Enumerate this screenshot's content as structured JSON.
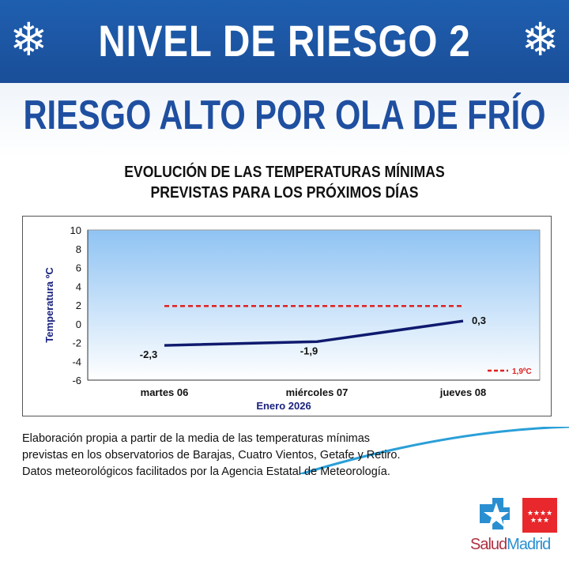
{
  "header": {
    "title": "NIVEL DE RIESGO 2",
    "icon": "snowflake-icon"
  },
  "subtitle": "RIESGO ALTO POR OLA DE FRÍO",
  "chart_data": {
    "type": "line",
    "title_lines": [
      "EVOLUCIÓN DE LAS TEMPERATURAS MÍNIMAS",
      "PREVISTAS PARA LOS PRÓXIMOS DÍAS"
    ],
    "categories": [
      "martes 06",
      "miércoles 07",
      "jueves 08"
    ],
    "xlabel": "Enero 2026",
    "ylabel": "Temperatura ºC",
    "ylim": [
      -6,
      10
    ],
    "yticks": [
      10,
      8,
      6,
      4,
      2,
      0,
      -2,
      -4,
      -6
    ],
    "series": [
      {
        "values": [
          -2.3,
          -1.9,
          0.3
        ],
        "labels": [
          "-2,3",
          "-1,9",
          "0,3"
        ],
        "color": "#0f1a6e"
      }
    ],
    "threshold": {
      "value": 1.9,
      "name": "1,9ºC",
      "color": "#e02020",
      "style": "dashed"
    },
    "legend": "bottom-right",
    "background": "gradient light blue"
  },
  "note": [
    "Elaboración propia a partir de la media de las temperaturas mínimas",
    "previstas en los observatorios de Barajas, Cuatro Vientos, Getafe y Retiro.",
    "Datos meteorológicos facilitados por la Agencia Estatal de Meteorología."
  ],
  "logo": {
    "part1": "Salud",
    "part2": "Madrid"
  },
  "colors": {
    "header": "#1f5fb0",
    "title": "#1f4fa0",
    "red": "#e02020"
  }
}
